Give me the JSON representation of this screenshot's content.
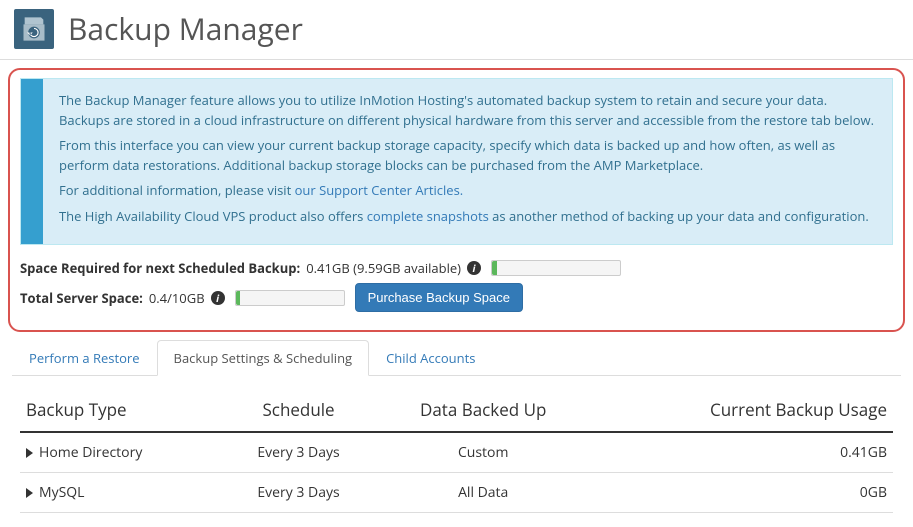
{
  "header": {
    "title": "Backup Manager"
  },
  "info": {
    "para1": "The Backup Manager feature allows you to utilize InMotion Hosting's automated backup system to retain and secure your data. Backups are stored in a cloud infrastructure on different physical hardware from this server and accessible from the restore tab below.",
    "para2": "From this interface you can view your current backup storage capacity, specify which data is backed up and how often, as well as perform data restorations. Additional backup storage blocks can be purchased from the AMP Marketplace.",
    "para3_pre": "For additional information, please visit ",
    "para3_link": "our Support Center Articles.",
    "para4_pre": "The High Availability Cloud VPS product also offers ",
    "para4_link": "complete snapshots",
    "para4_post": " as another method of backing up your data and configuration."
  },
  "stats": {
    "required_label": "Space Required for next Scheduled Backup:",
    "required_value": "0.41GB (9.59GB available)",
    "required_percent": 4,
    "total_label": "Total Server Space:",
    "total_value": "0.4/10GB",
    "total_percent": 4,
    "purchase_label": "Purchase Backup Space"
  },
  "tabs": [
    {
      "label": "Perform a Restore",
      "active": false
    },
    {
      "label": "Backup Settings & Scheduling",
      "active": true
    },
    {
      "label": "Child Accounts",
      "active": false
    }
  ],
  "table": {
    "columns": [
      "Backup Type",
      "Schedule",
      "Data Backed Up",
      "Current Backup Usage"
    ],
    "rows": [
      {
        "type": "Home Directory",
        "schedule": "Every 3 Days",
        "data": "Custom",
        "usage": "0.41GB"
      },
      {
        "type": "MySQL",
        "schedule": "Every 3 Days",
        "data": "All Data",
        "usage": "0GB"
      }
    ]
  },
  "colors": {
    "accent": "#337ab7",
    "highlight_border": "#d9534f",
    "info_bg": "#d9edf7",
    "info_bar": "#359fcf",
    "progress_fill": "#5cb85c"
  }
}
